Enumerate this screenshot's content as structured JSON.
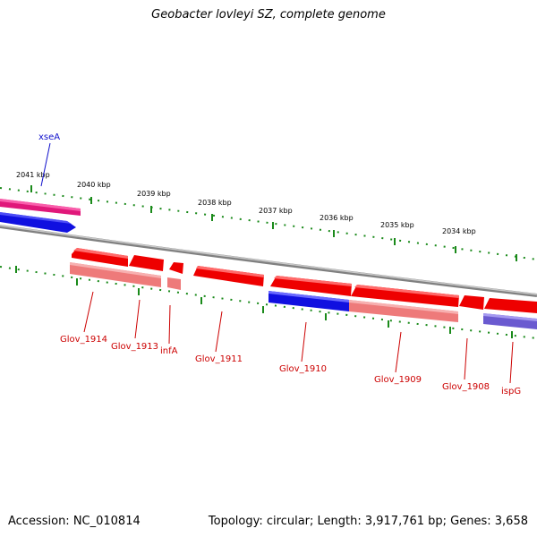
{
  "title": "Geobacter lovleyi SZ, complete genome",
  "footer": {
    "accession": "Accession: NC_010814",
    "summary": "Topology: circular; Length: 3,917,761 bp; Genes: 3,658"
  },
  "ruler_ticks": [
    "2041 kbp",
    "2040 kbp",
    "2039 kbp",
    "2038 kbp",
    "2037 kbp",
    "2036 kbp",
    "2035 kbp",
    "2034 kbp"
  ],
  "gene_labels": {
    "xseA": "xseA",
    "glov1914": "Glov_1914",
    "glov1913": "Glov_1913",
    "infA": "infA",
    "glov1911": "Glov_1911",
    "glov1910": "Glov_1910",
    "glov1909": "Glov_1909",
    "glov1908": "Glov_1908",
    "ispG": "ispG"
  },
  "colors": {
    "forward_gene": "#ee0000",
    "reverse_gene": "#e0187a",
    "forward_cds_alt": "#1010e0",
    "ispG_cds": "#6a5ad0",
    "feature_light": "#ee7a7a",
    "backbone": "#808080",
    "tick_green": "#1a8a1a",
    "label_red": "#cc0000",
    "label_blue": "#1010cc"
  }
}
